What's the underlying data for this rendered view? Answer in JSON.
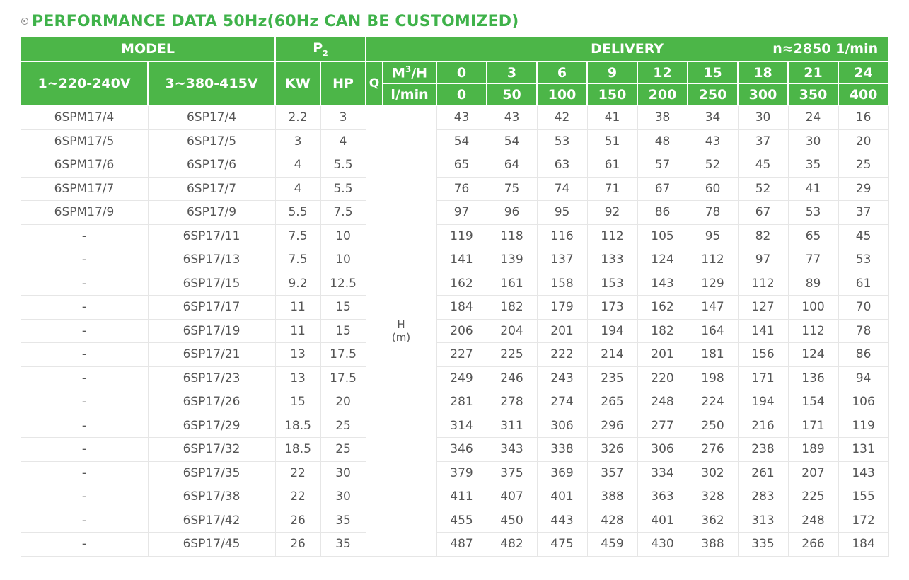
{
  "title": "PERFORMANCE DATA 50Hz(60Hz CAN BE CUSTOMIZED)",
  "header": {
    "model": "MODEL",
    "p2": "P",
    "p2_sub": "2",
    "delivery": "DELIVERY",
    "speed": "n≈2850 1/min",
    "single_phase": "1~220-240V",
    "three_phase": "3~380-415V",
    "kw": "KW",
    "hp": "HP",
    "q": "Q",
    "unit_m3h": "M",
    "unit_m3h_sup": "3",
    "unit_m3h_rest": "/H",
    "unit_lmin": "l/min",
    "flow_m3h": [
      "0",
      "3",
      "6",
      "9",
      "12",
      "15",
      "18",
      "21",
      "24"
    ],
    "flow_lmin": [
      "0",
      "50",
      "100",
      "150",
      "200",
      "250",
      "300",
      "350",
      "400"
    ]
  },
  "head_label": "H",
  "head_unit": "(m)",
  "rows": [
    {
      "m1": "6SPM17/4",
      "m3": "6SP17/4",
      "kw": "2.2",
      "hp": "3",
      "h": [
        "43",
        "43",
        "42",
        "41",
        "38",
        "34",
        "30",
        "24",
        "16"
      ]
    },
    {
      "m1": "6SPM17/5",
      "m3": "6SP17/5",
      "kw": "3",
      "hp": "4",
      "h": [
        "54",
        "54",
        "53",
        "51",
        "48",
        "43",
        "37",
        "30",
        "20"
      ]
    },
    {
      "m1": "6SPM17/6",
      "m3": "6SP17/6",
      "kw": "4",
      "hp": "5.5",
      "h": [
        "65",
        "64",
        "63",
        "61",
        "57",
        "52",
        "45",
        "35",
        "25"
      ]
    },
    {
      "m1": "6SPM17/7",
      "m3": "6SP17/7",
      "kw": "4",
      "hp": "5.5",
      "h": [
        "76",
        "75",
        "74",
        "71",
        "67",
        "60",
        "52",
        "41",
        "29"
      ]
    },
    {
      "m1": "6SPM17/9",
      "m3": "6SP17/9",
      "kw": "5.5",
      "hp": "7.5",
      "h": [
        "97",
        "96",
        "95",
        "92",
        "86",
        "78",
        "67",
        "53",
        "37"
      ]
    },
    {
      "m1": "-",
      "m3": "6SP17/11",
      "kw": "7.5",
      "hp": "10",
      "h": [
        "119",
        "118",
        "116",
        "112",
        "105",
        "95",
        "82",
        "65",
        "45"
      ]
    },
    {
      "m1": "-",
      "m3": "6SP17/13",
      "kw": "7.5",
      "hp": "10",
      "h": [
        "141",
        "139",
        "137",
        "133",
        "124",
        "112",
        "97",
        "77",
        "53"
      ]
    },
    {
      "m1": "-",
      "m3": "6SP17/15",
      "kw": "9.2",
      "hp": "12.5",
      "h": [
        "162",
        "161",
        "158",
        "153",
        "143",
        "129",
        "112",
        "89",
        "61"
      ]
    },
    {
      "m1": "-",
      "m3": "6SP17/17",
      "kw": "11",
      "hp": "15",
      "h": [
        "184",
        "182",
        "179",
        "173",
        "162",
        "147",
        "127",
        "100",
        "70"
      ]
    },
    {
      "m1": "-",
      "m3": "6SP17/19",
      "kw": "11",
      "hp": "15",
      "h": [
        "206",
        "204",
        "201",
        "194",
        "182",
        "164",
        "141",
        "112",
        "78"
      ]
    },
    {
      "m1": "-",
      "m3": "6SP17/21",
      "kw": "13",
      "hp": "17.5",
      "h": [
        "227",
        "225",
        "222",
        "214",
        "201",
        "181",
        "156",
        "124",
        "86"
      ]
    },
    {
      "m1": "-",
      "m3": "6SP17/23",
      "kw": "13",
      "hp": "17.5",
      "h": [
        "249",
        "246",
        "243",
        "235",
        "220",
        "198",
        "171",
        "136",
        "94"
      ]
    },
    {
      "m1": "-",
      "m3": "6SP17/26",
      "kw": "15",
      "hp": "20",
      "h": [
        "281",
        "278",
        "274",
        "265",
        "248",
        "224",
        "194",
        "154",
        "106"
      ]
    },
    {
      "m1": "-",
      "m3": "6SP17/29",
      "kw": "18.5",
      "hp": "25",
      "h": [
        "314",
        "311",
        "306",
        "296",
        "277",
        "250",
        "216",
        "171",
        "119"
      ]
    },
    {
      "m1": "-",
      "m3": "6SP17/32",
      "kw": "18.5",
      "hp": "25",
      "h": [
        "346",
        "343",
        "338",
        "326",
        "306",
        "276",
        "238",
        "189",
        "131"
      ]
    },
    {
      "m1": "-",
      "m3": "6SP17/35",
      "kw": "22",
      "hp": "30",
      "h": [
        "379",
        "375",
        "369",
        "357",
        "334",
        "302",
        "261",
        "207",
        "143"
      ]
    },
    {
      "m1": "-",
      "m3": "6SP17/38",
      "kw": "22",
      "hp": "30",
      "h": [
        "411",
        "407",
        "401",
        "388",
        "363",
        "328",
        "283",
        "225",
        "155"
      ]
    },
    {
      "m1": "-",
      "m3": "6SP17/42",
      "kw": "26",
      "hp": "35",
      "h": [
        "455",
        "450",
        "443",
        "428",
        "401",
        "362",
        "313",
        "248",
        "172"
      ]
    },
    {
      "m1": "-",
      "m3": "6SP17/45",
      "kw": "26",
      "hp": "35",
      "h": [
        "487",
        "482",
        "475",
        "459",
        "430",
        "388",
        "335",
        "266",
        "184"
      ]
    }
  ]
}
